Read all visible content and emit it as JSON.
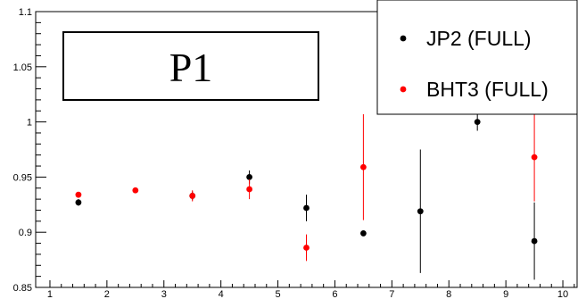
{
  "chart_data": {
    "type": "scatter",
    "title": "P1",
    "xlabel": "",
    "ylabel": "",
    "xlim": [
      0.75,
      10.25
    ],
    "ylim": [
      0.85,
      1.1
    ],
    "grid": false,
    "legend_position": "top-right",
    "x_ticks": [
      "1",
      "2",
      "3",
      "4",
      "5",
      "6",
      "7",
      "8",
      "9",
      "10"
    ],
    "y_ticks": [
      "0.85",
      "0.9",
      "0.95",
      "1",
      "1.05",
      "1.1"
    ],
    "series": [
      {
        "name": "JP2 (FULL)",
        "color": "#000000",
        "points": [
          {
            "x": 1.5,
            "y": 0.927,
            "err": 0.003
          },
          {
            "x": 3.5,
            "y": 0.933,
            "err": 0.004
          },
          {
            "x": 4.5,
            "y": 0.95,
            "err": 0.006
          },
          {
            "x": 5.5,
            "y": 0.922,
            "err": 0.012
          },
          {
            "x": 6.5,
            "y": 0.899,
            "err": 0.002
          },
          {
            "x": 7.5,
            "y": 0.919,
            "err": 0.056
          },
          {
            "x": 8.5,
            "y": 1.0,
            "err": 0.008
          },
          {
            "x": 9.5,
            "y": 0.892,
            "err": 0.035
          }
        ]
      },
      {
        "name": "BHT3 (FULL)",
        "color": "#ff0000",
        "points": [
          {
            "x": 1.5,
            "y": 0.934,
            "err": 0.002
          },
          {
            "x": 2.5,
            "y": 0.938,
            "err": 0.002
          },
          {
            "x": 3.5,
            "y": 0.933,
            "err": 0.005
          },
          {
            "x": 4.5,
            "y": 0.939,
            "err": 0.009
          },
          {
            "x": 5.5,
            "y": 0.886,
            "err": 0.012
          },
          {
            "x": 6.5,
            "y": 0.959,
            "err": 0.048
          },
          {
            "x": 9.5,
            "y": 0.968,
            "err": 0.04
          }
        ]
      }
    ]
  }
}
